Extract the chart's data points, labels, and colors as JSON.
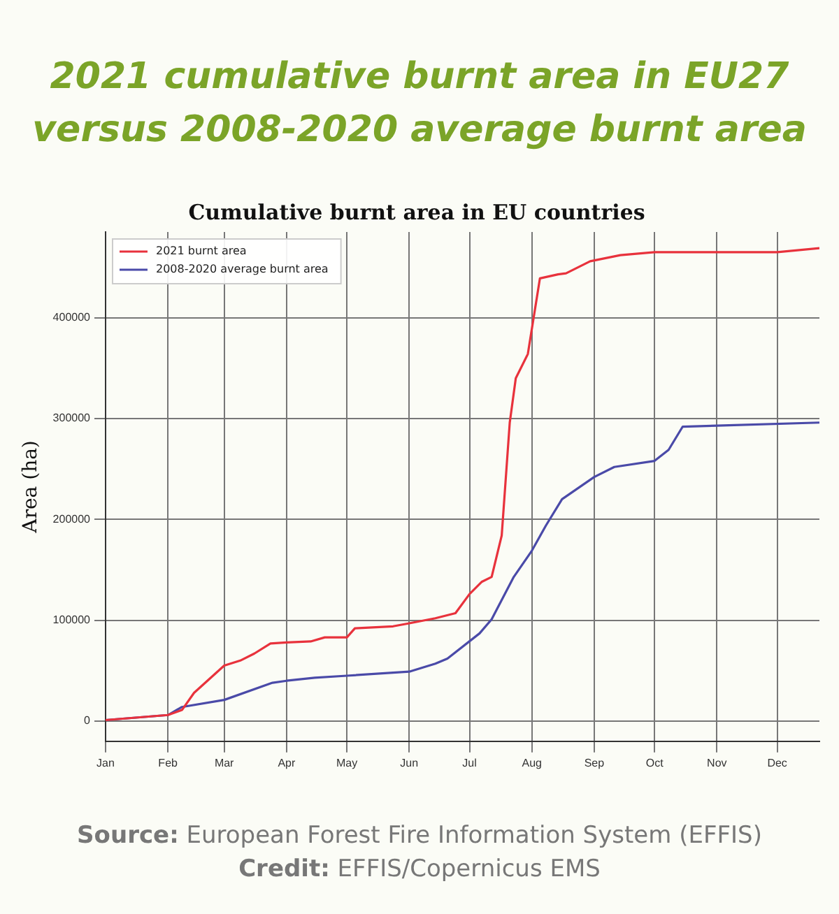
{
  "chart_data": {
    "type": "line",
    "title": "2021 cumulative burnt area in EU27 versus 2008-2020 average burnt area",
    "subtitle": "Cumulative burnt area in EU countries",
    "ylabel": "Area (ha)",
    "xlim": [
      "2021-01-01",
      "2021-12-22"
    ],
    "xticks": [
      {
        "value": "2021-01-01",
        "label": "Jan"
      },
      {
        "value": "2021-02-01",
        "label": "Feb"
      },
      {
        "value": "2021-03-01",
        "label": "Mar"
      },
      {
        "value": "2021-04-01",
        "label": "Apr"
      },
      {
        "value": "2021-05-01",
        "label": "May"
      },
      {
        "value": "2021-06-01",
        "label": "Jun"
      },
      {
        "value": "2021-07-01",
        "label": "Jul"
      },
      {
        "value": "2021-08-01",
        "label": "Aug"
      },
      {
        "value": "2021-09-01",
        "label": "Sep"
      },
      {
        "value": "2021-10-01",
        "label": "Oct"
      },
      {
        "value": "2021-11-01",
        "label": "Nov"
      },
      {
        "value": "2021-12-01",
        "label": "Dec"
      }
    ],
    "ylim": [
      -20000,
      485000
    ],
    "yticks": [
      0,
      100000,
      200000,
      300000,
      400000
    ],
    "grid": true,
    "legend": "top left",
    "marker": "none",
    "series": [
      {
        "name": "2021 burnt area",
        "color": "#e8323c",
        "x": [
          "2021-01-01",
          "2021-02-01",
          "2021-02-08",
          "2021-02-14",
          "2021-03-01",
          "2021-03-09",
          "2021-03-16",
          "2021-03-24",
          "2021-04-01",
          "2021-04-13",
          "2021-04-20",
          "2021-05-01",
          "2021-05-05",
          "2021-05-24",
          "2021-06-01",
          "2021-06-14",
          "2021-06-24",
          "2021-07-01",
          "2021-07-07",
          "2021-07-12",
          "2021-07-17",
          "2021-07-21",
          "2021-07-24",
          "2021-07-30",
          "2021-08-05",
          "2021-08-14",
          "2021-08-18",
          "2021-08-30",
          "2021-09-14",
          "2021-10-01",
          "2021-11-01",
          "2021-12-01",
          "2021-12-22"
        ],
        "values": [
          1000,
          6000,
          11000,
          28000,
          55000,
          60000,
          67000,
          77000,
          78000,
          79000,
          83000,
          83000,
          92000,
          94000,
          97000,
          102000,
          107000,
          126000,
          138000,
          143000,
          184000,
          296000,
          340000,
          364000,
          439000,
          443000,
          444000,
          456000,
          462000,
          465000,
          465000,
          465000,
          469000
        ]
      },
      {
        "name": "2008-2020 average burnt area",
        "color": "#4a4aa8",
        "x": [
          "2021-01-01",
          "2021-02-01",
          "2021-02-08",
          "2021-03-01",
          "2021-03-25",
          "2021-04-01",
          "2021-04-15",
          "2021-05-01",
          "2021-06-01",
          "2021-06-14",
          "2021-06-20",
          "2021-07-06",
          "2021-07-12",
          "2021-07-23",
          "2021-08-01",
          "2021-08-08",
          "2021-08-16",
          "2021-09-01",
          "2021-09-11",
          "2021-10-01",
          "2021-10-08",
          "2021-10-15",
          "2021-11-01",
          "2021-12-22"
        ],
        "values": [
          1000,
          6000,
          14000,
          21000,
          38000,
          40000,
          43000,
          45000,
          49000,
          57000,
          62000,
          87000,
          101000,
          143000,
          169000,
          194000,
          220000,
          242000,
          252000,
          258000,
          269000,
          292000,
          293000,
          296000
        ]
      }
    ],
    "annotations": [
      "Source: European Forest Fire Information System (EFFIS)",
      "Credit: EFFIS/Copernicus EMS"
    ]
  }
}
